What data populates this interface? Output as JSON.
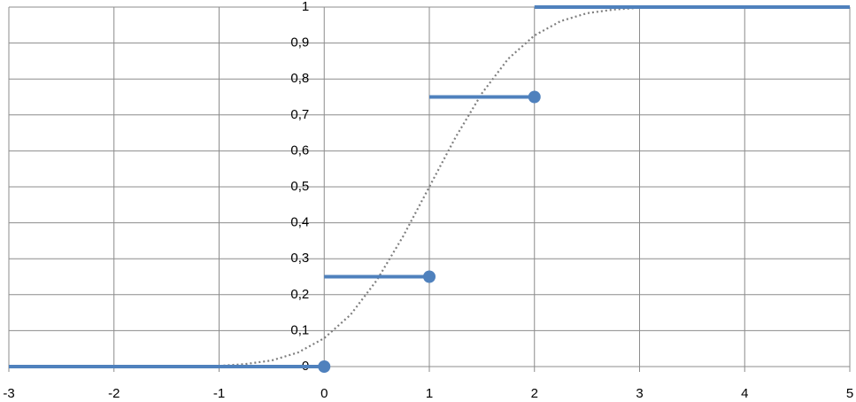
{
  "chart_data": {
    "type": "line",
    "xlim": [
      -3,
      5
    ],
    "xticks": [
      -3,
      -2,
      -1,
      0,
      1,
      2,
      3,
      4,
      5
    ],
    "ylim": [
      0,
      1
    ],
    "yticks": [
      0,
      {
        "value": 0.1,
        "label": "0,1"
      },
      {
        "value": 0.2,
        "label": "0,2"
      },
      {
        "value": 0.3,
        "label": "0,3"
      },
      {
        "value": 0.4,
        "label": "0,4"
      },
      {
        "value": 0.5,
        "label": "0,5"
      },
      {
        "value": 0.6,
        "label": "0,6"
      },
      {
        "value": 0.7,
        "label": "0,7"
      },
      {
        "value": 0.8,
        "label": "0,8"
      },
      {
        "value": 0.9,
        "label": "0,9"
      },
      1
    ],
    "grid": true,
    "series": [
      {
        "kind": "step",
        "color": "#4f81bd",
        "x_start": [
          -3,
          0,
          1,
          2
        ],
        "x_end": [
          0,
          1,
          2,
          5
        ],
        "values": [
          0,
          0.25,
          0.75,
          1
        ]
      },
      {
        "kind": "points",
        "color": "#4f81bd",
        "x": [
          0,
          1,
          2
        ],
        "values": [
          0,
          0.25,
          0.75
        ]
      },
      {
        "kind": "dotted",
        "color": "#7f7f7f",
        "x": [
          -1,
          -0.75,
          -0.5,
          -0.25,
          0,
          0.25,
          0.5,
          0.75,
          1,
          1.25,
          1.5,
          1.75,
          2,
          2.25,
          2.5,
          2.75,
          3
        ],
        "values": [
          0.002,
          0.007,
          0.017,
          0.039,
          0.079,
          0.144,
          0.24,
          0.362,
          0.5,
          0.638,
          0.76,
          0.856,
          0.921,
          0.961,
          0.983,
          0.993,
          0.998
        ]
      }
    ]
  }
}
